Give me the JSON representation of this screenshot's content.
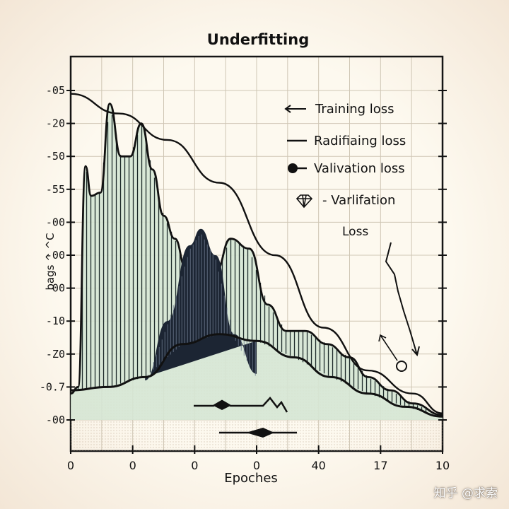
{
  "chart_data": {
    "type": "area",
    "title": "Underfitting",
    "xlabel": "Epoches",
    "ylabel": "bags ^ ^C",
    "y_tick_labels": [
      "-05",
      "-20",
      "-50",
      "-55",
      "-00",
      "-00",
      "-00",
      "-10",
      "-Z0",
      "-0.7",
      "-00"
    ],
    "x_tick_labels": [
      "0",
      "0",
      "0",
      "0",
      "40",
      "17",
      "10"
    ],
    "xlim": [
      0,
      10
    ],
    "ylim": [
      0,
      10
    ],
    "series": [
      {
        "name": "Training loss",
        "style": "line",
        "x": [
          0,
          1.3,
          2.6,
          4.0,
          5.5,
          6.8,
          8.0,
          9.2,
          10
        ],
        "y": [
          9.9,
          9.3,
          8.5,
          7.2,
          5.0,
          2.8,
          1.5,
          0.8,
          0.2
        ]
      },
      {
        "name": "Radifiaing loss",
        "style": "hatched-area",
        "x": [
          0,
          0.2,
          0.4,
          0.55,
          0.8,
          1.05,
          1.35,
          1.6,
          1.9,
          2.2,
          2.5,
          2.8,
          3.1,
          3.5,
          3.9,
          4.3,
          4.8,
          5.3,
          5.8,
          6.3,
          6.9,
          7.5,
          8.0,
          8.6,
          9.2,
          10
        ],
        "y": [
          0.8,
          1.0,
          7.7,
          6.8,
          6.9,
          9.6,
          8.0,
          8.0,
          9.0,
          7.6,
          6.2,
          5.5,
          4.6,
          4.0,
          4.5,
          5.5,
          5.2,
          3.5,
          2.7,
          2.7,
          2.3,
          1.9,
          1.3,
          0.9,
          0.5,
          0.15
        ]
      },
      {
        "name": "Valivation loss",
        "style": "filled-peak",
        "x": [
          2.0,
          2.6,
          3.2,
          3.5,
          3.9,
          4.4,
          5.0
        ],
        "y": [
          1.2,
          3.0,
          5.3,
          5.8,
          5.0,
          2.6,
          1.4
        ]
      },
      {
        "name": "Varlifation Loss",
        "style": "line",
        "x": [
          0,
          1.0,
          2.0,
          3.0,
          4.0,
          5.0,
          6.0,
          7.0,
          8.0,
          9.0,
          10
        ],
        "y": [
          0.9,
          1.0,
          1.3,
          2.3,
          2.6,
          2.4,
          1.9,
          1.3,
          0.8,
          0.4,
          0.1
        ]
      }
    ],
    "legend": [
      "Training loss",
      "Radifiaing loss",
      "Valivation loss",
      "- Varlifation",
      "Loss"
    ],
    "legend_position": "top-right",
    "grid": true
  },
  "watermark": "知乎 @求索"
}
